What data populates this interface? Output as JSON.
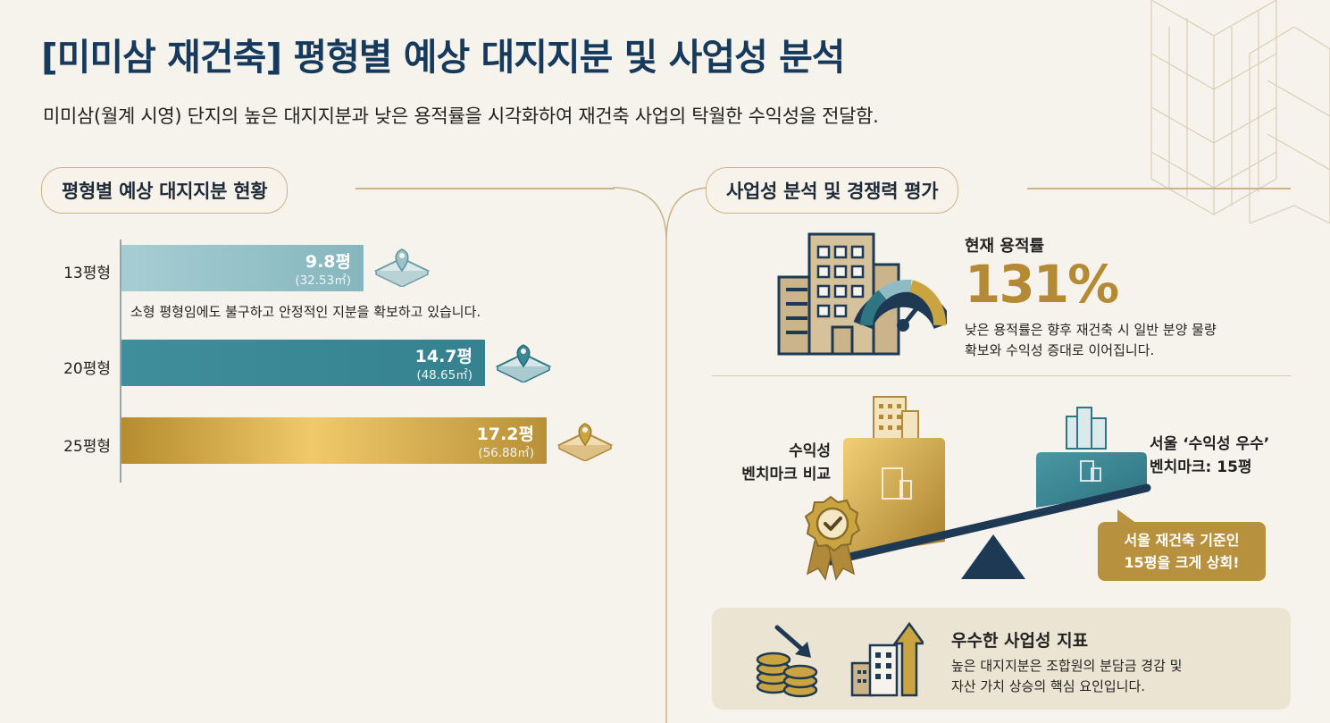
{
  "header": {
    "title": "[미미삼 재건축] 평형별 예상 대지지분 및 사업성 분석",
    "subtitle": "미미삼(월계 시영) 단지의 높은 대지지분과 낮은 용적률을 시각화하여 재건축 사업의 탁월한 수익성을 전달함."
  },
  "left_section": {
    "heading": "평형별 예상 대지지분 현황",
    "note": "소형 평형임에도 불구하고 안정적인 지분을 확보하고 있습니다."
  },
  "chart_data": {
    "type": "bar",
    "orientation": "horizontal",
    "categories": [
      "13평형",
      "20평형",
      "25평형"
    ],
    "values": [
      9.8,
      14.7,
      17.2
    ],
    "value_labels": [
      "9.8평",
      "14.7평",
      "17.2평"
    ],
    "sub_labels": [
      "(32.53㎡)",
      "(48.65㎡)",
      "(56.88㎡)"
    ],
    "xlim": [
      0,
      20
    ],
    "grid": false,
    "colors": [
      "#8fbcc4",
      "#3a8796",
      "#c9a440"
    ],
    "icon": "map-pin-icon"
  },
  "right_section": {
    "heading": "사업성 분석 및 경쟁력 평가",
    "far": {
      "label": "현재 용적률",
      "value": "131%",
      "description_line1": "낮은 용적률은 향후 재건축 시 일반 분양 물량",
      "description_line2": "확보와 수익성 증대로 이어집니다."
    },
    "benchmark": {
      "left_line1": "수익성",
      "left_line2": "벤치마크 비교",
      "right_line1": "서울 ‘수익성 우수’",
      "right_line2": "벤치마크: 15평",
      "callout_line1": "서울 재건축 기준인",
      "callout_line2": "15평을 크게 상회!"
    },
    "indicator": {
      "title": "우수한 사업성 지표",
      "line1": "높은 대지지분은 조합원의 분담금 경감 및",
      "line2": "자산 가치 상승의 핵심 요인입니다."
    }
  },
  "colors": {
    "navy": "#163a5c",
    "gold": "#b48b34",
    "teal": "#3a8796",
    "beige_line": "#c9b48a"
  }
}
